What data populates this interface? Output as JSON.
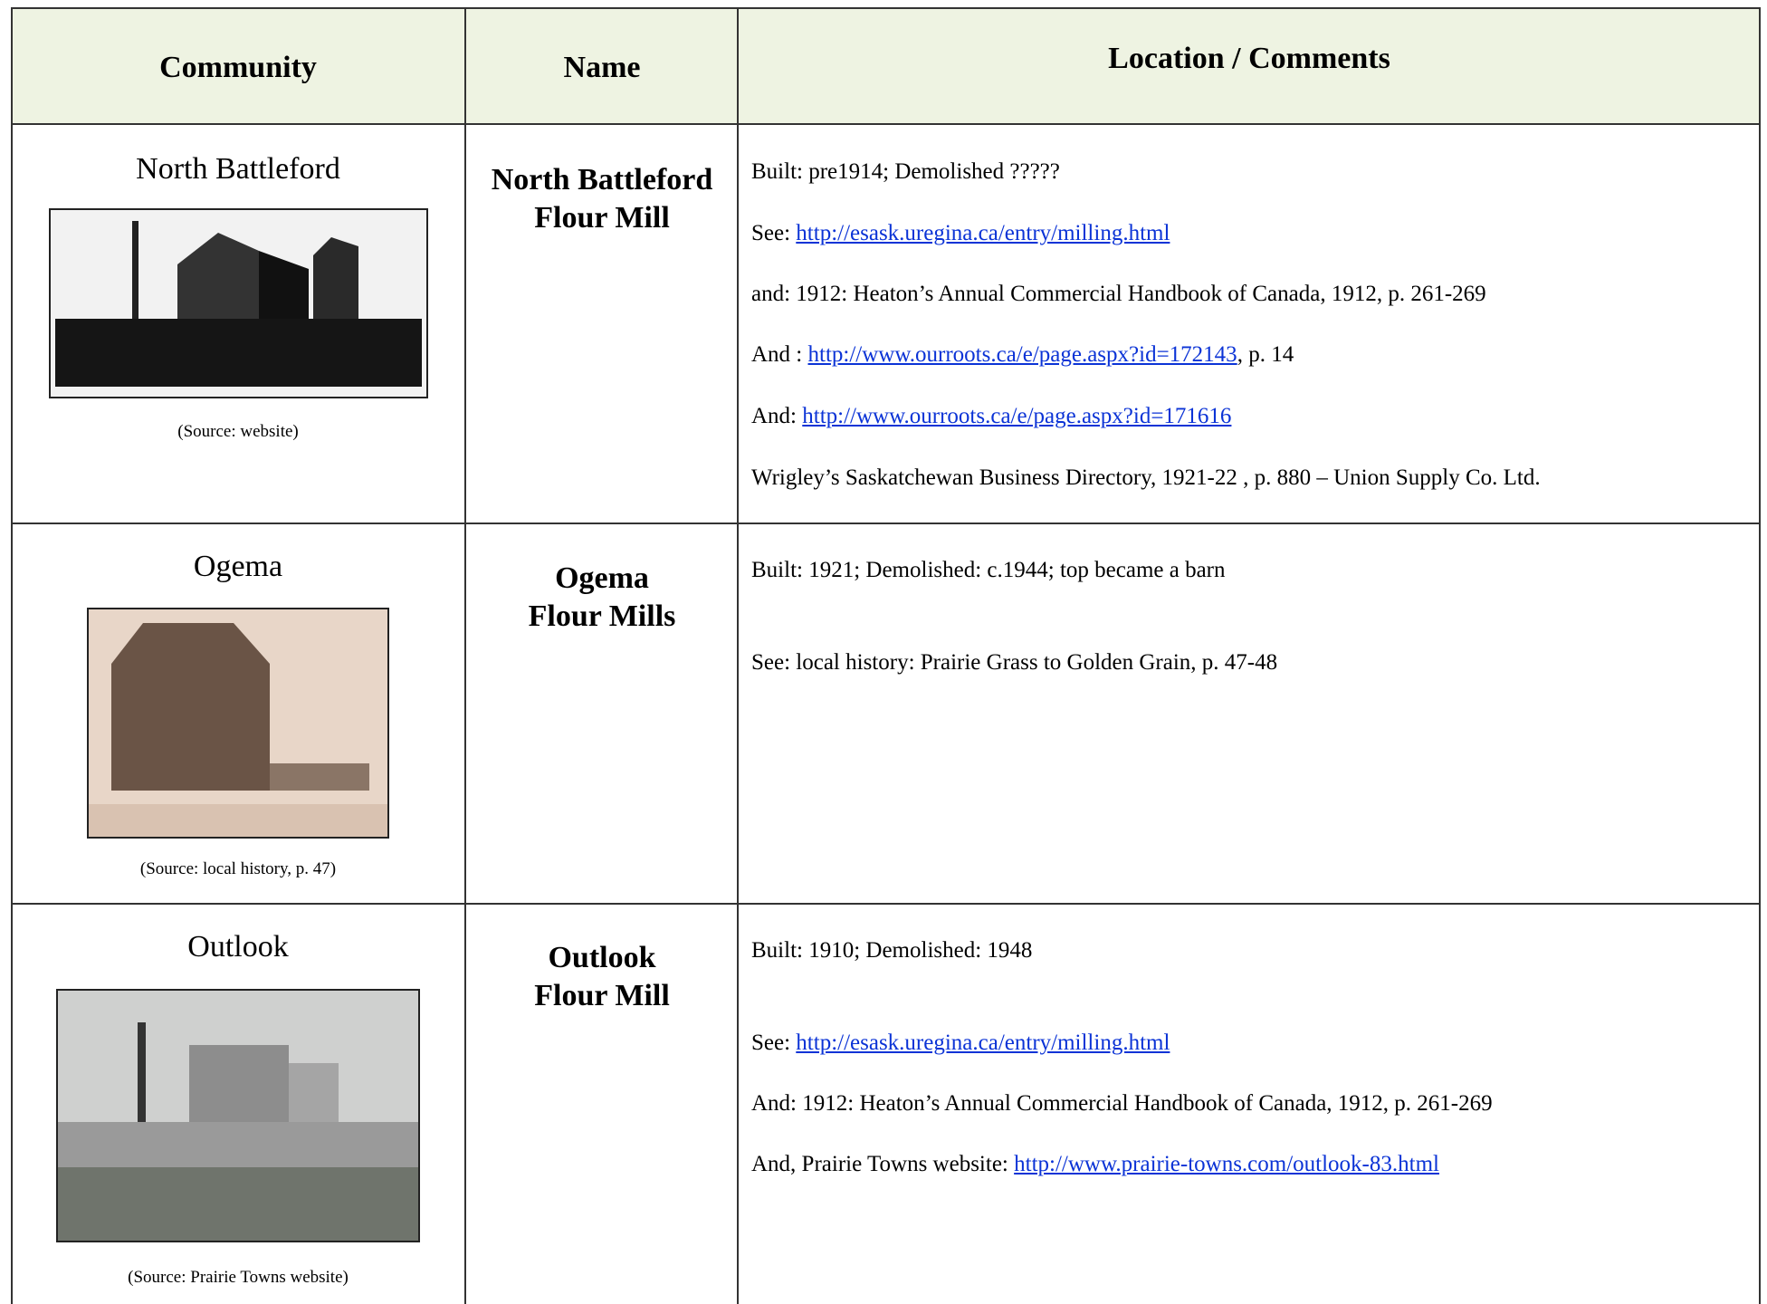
{
  "header": {
    "columns": [
      "Community",
      "Name",
      "Location / Comments"
    ]
  },
  "rows": [
    {
      "community": "North Battleford",
      "image_source": "(Source: website)",
      "name": [
        "North Battleford",
        "Flour Mill"
      ],
      "comments": [
        {
          "text": "Built:  pre1914; Demolished ?????"
        },
        {
          "text": "See:  ",
          "link": "http://esask.uregina.ca/entry/milling.html"
        },
        {
          "text": "and:  1912:  Heaton’s Annual Commercial Handbook of Canada, 1912, p. 261-269"
        },
        {
          "text": "And : ",
          "link": "http://www.ourroots.ca/e/page.aspx?id=172143",
          "after": ", p. 14"
        },
        {
          "text": "And: ",
          "link": "http://www.ourroots.ca/e/page.aspx?id=171616"
        },
        {
          "text": "Wrigley’s Saskatchewan Business Directory, 1921-22 , p. 880 –   Union Supply Co. Ltd."
        }
      ]
    },
    {
      "community": "Ogema",
      "image_source": "(Source: local history, p. 47)",
      "name": [
        "Ogema",
        "Flour Mills"
      ],
      "comments": [
        {
          "text": "Built: 1921; Demolished:  c.1944; top became a barn"
        },
        {
          "text": "See:  local history:  Prairie Grass to Golden Grain, p. 47-48"
        }
      ]
    },
    {
      "community": "Outlook",
      "image_source": "(Source: Prairie Towns website)",
      "name": [
        "Outlook",
        "Flour Mill"
      ],
      "comments": [
        {
          "text": "Built: 1910; Demolished: 1948"
        },
        {
          "text": "See:  ",
          "link": "http://esask.uregina.ca/entry/milling.html"
        },
        {
          "text": "And:  1912:  Heaton’s Annual Commercial Handbook of Canada, 1912, p. 261-269"
        },
        {
          "text": "And, Prairie Towns website: ",
          "link": "http://www.prairie-towns.com/outlook-83.html"
        }
      ]
    }
  ]
}
